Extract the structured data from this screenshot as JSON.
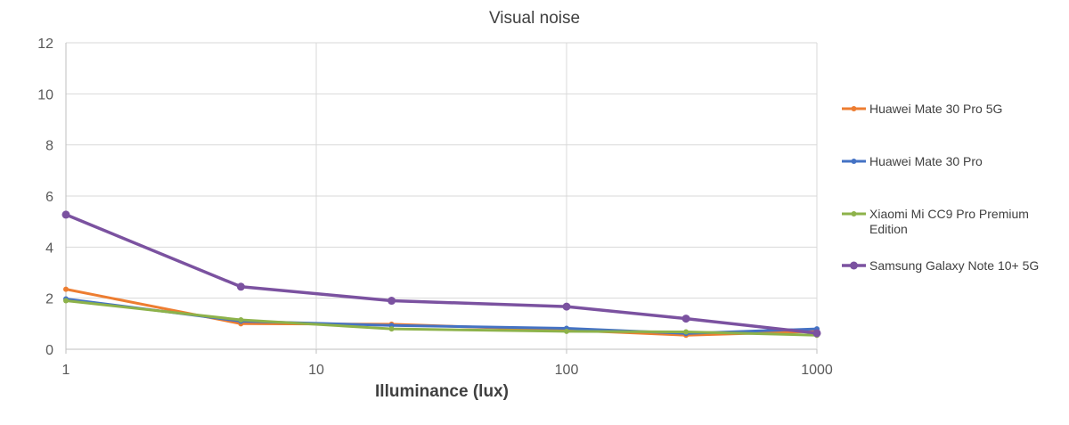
{
  "chart_data": {
    "type": "line",
    "title": "Visual noise",
    "xlabel": "Illuminance (lux)",
    "ylabel": "",
    "x_scale": "log",
    "xlim": [
      1,
      1000
    ],
    "ylim": [
      0,
      12
    ],
    "x_ticks": [
      1,
      10,
      100,
      1000
    ],
    "x_tick_labels": [
      "1",
      "10",
      "100",
      "1000"
    ],
    "y_ticks": [
      0,
      2,
      4,
      6,
      8,
      10,
      12
    ],
    "y_tick_labels": [
      "0",
      "2",
      "4",
      "6",
      "8",
      "10",
      "12"
    ],
    "grid": true,
    "legend_position": "right",
    "x": [
      1,
      5,
      20,
      100,
      300,
      1000
    ],
    "series": [
      {
        "name": "Huawei Mate 30 Pro 5G",
        "color": "#ED7D31",
        "values": [
          2.35,
          1.0,
          0.98,
          0.75,
          0.55,
          0.7
        ]
      },
      {
        "name": "Huawei Mate 30 Pro",
        "color": "#4472C4",
        "values": [
          1.97,
          1.1,
          0.93,
          0.82,
          0.62,
          0.8
        ]
      },
      {
        "name": "Xiaomi Mi CC9 Pro Premium Edition",
        "color": "#8DB24A",
        "values": [
          1.9,
          1.15,
          0.8,
          0.7,
          0.68,
          0.55
        ]
      },
      {
        "name": "Samsung Galaxy Note 10+ 5G",
        "color": "#7B52A0",
        "values": [
          5.27,
          2.45,
          1.9,
          1.67,
          1.2,
          0.63
        ]
      }
    ]
  }
}
